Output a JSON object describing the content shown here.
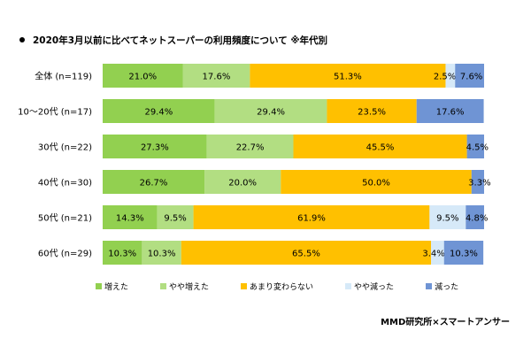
{
  "title": "2020年3月以前に比べてネットスーパーの利用頻度について ※年代別",
  "source": "MMD研究所×スマートアンサー",
  "colors": [
    "#92d050",
    "#b2de82",
    "#ffc000",
    "#d6e9f8",
    "#6f94d4"
  ],
  "chart_data": {
    "type": "bar",
    "orientation": "horizontal",
    "stacked": true,
    "percent": true,
    "title": "2020年3月以前に比べてネットスーパーの利用頻度について ※年代別",
    "categories": [
      "全体 (n=119)",
      "10～20代 (n=17)",
      "30代 (n=22)",
      "40代 (n=30)",
      "50代 (n=21)",
      "60代 (n=29)"
    ],
    "series": [
      {
        "name": "増えた",
        "values": [
          21.0,
          29.4,
          27.3,
          26.7,
          14.3,
          10.3
        ]
      },
      {
        "name": "やや増えた",
        "values": [
          17.6,
          29.4,
          22.7,
          20.0,
          9.5,
          10.3
        ]
      },
      {
        "name": "あまり変わらない",
        "values": [
          51.3,
          23.5,
          45.5,
          50.0,
          61.9,
          65.5
        ]
      },
      {
        "name": "やや減った",
        "values": [
          2.5,
          0,
          0,
          0,
          9.5,
          3.4
        ]
      },
      {
        "name": "減った",
        "values": [
          7.6,
          17.6,
          4.5,
          3.3,
          4.8,
          10.3
        ]
      }
    ],
    "xlim": [
      0,
      100
    ],
    "legend": "bottom"
  }
}
